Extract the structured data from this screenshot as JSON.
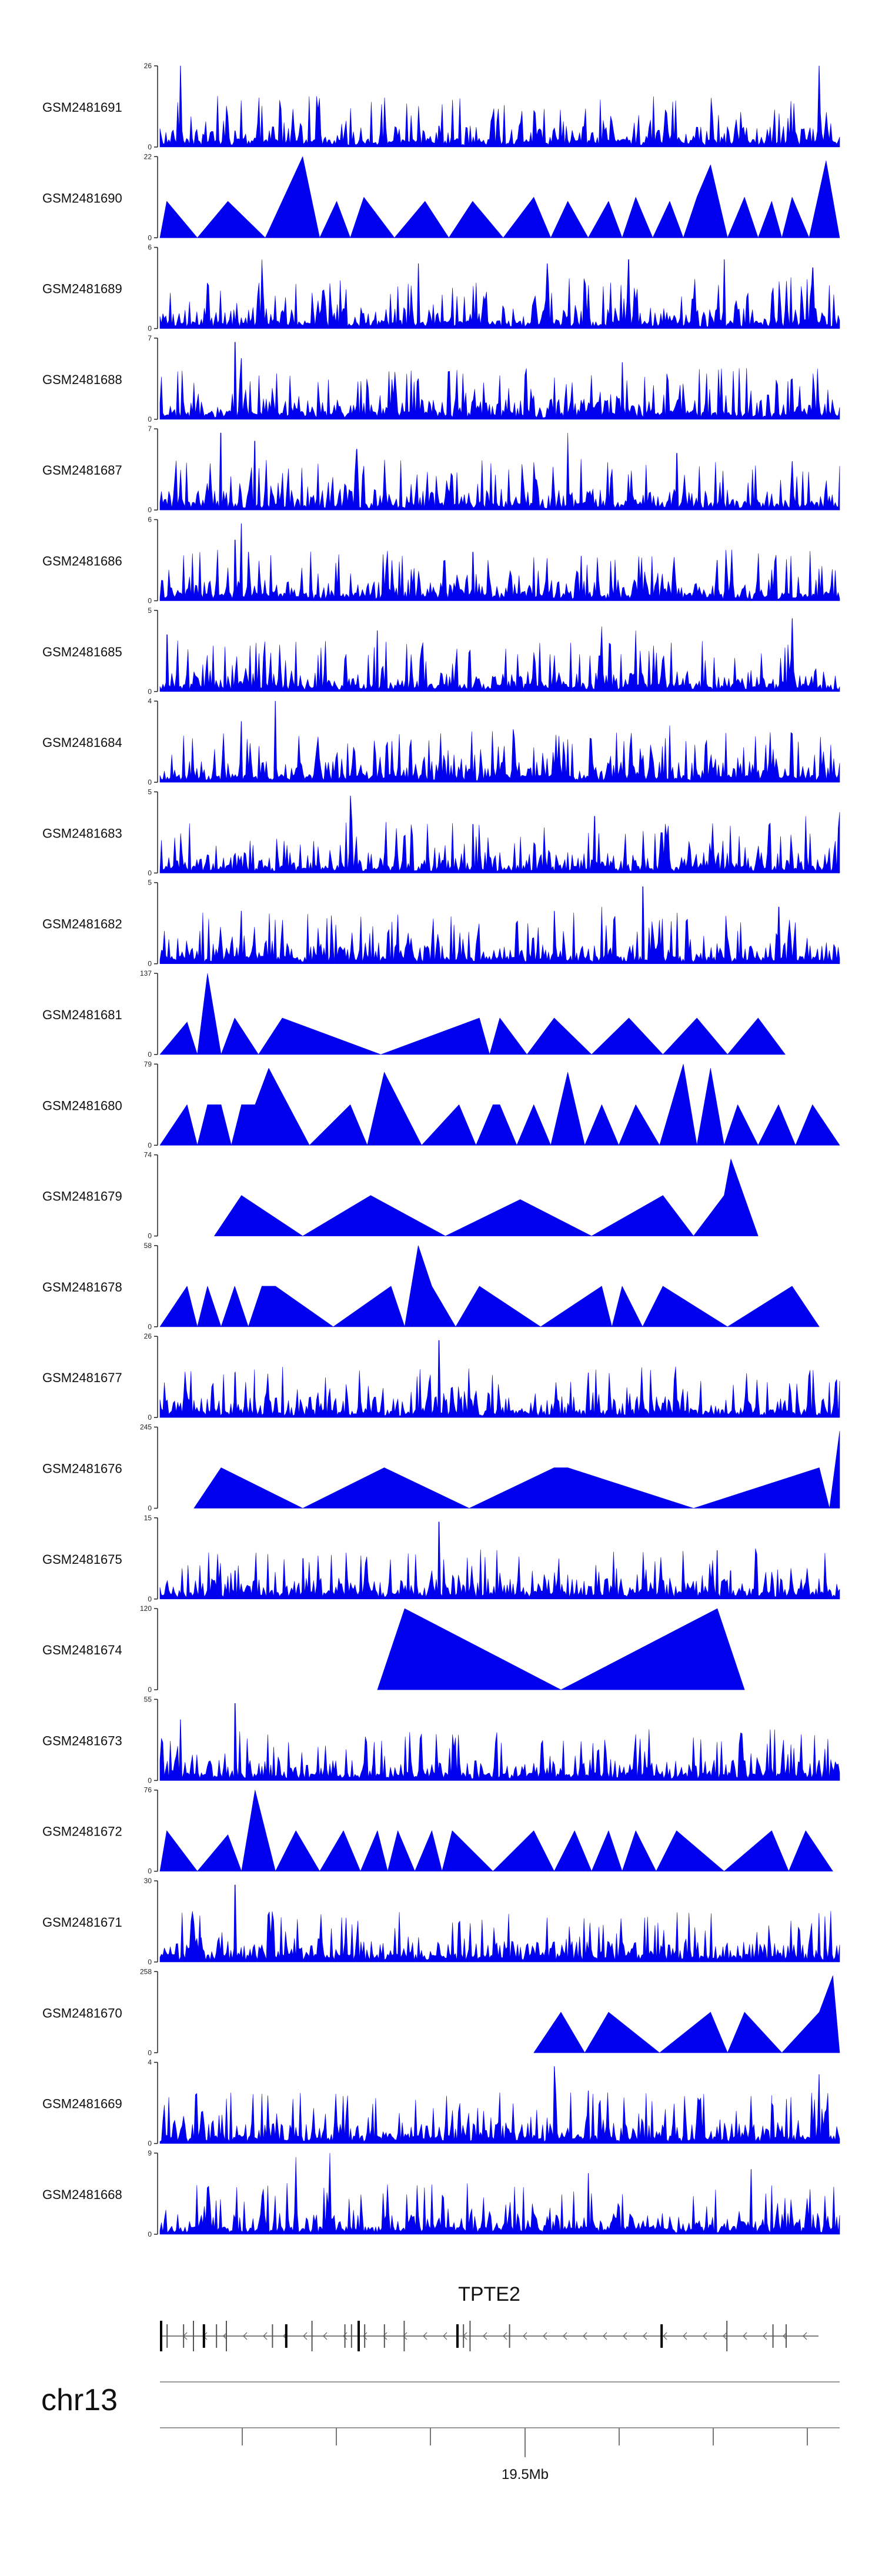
{
  "colors": {
    "signal": "#0000ee",
    "axis": "#222222",
    "gene": "#555555"
  },
  "chart_data": {
    "type": "area",
    "title": "",
    "chromosome": "chr13",
    "gene": "TPTE2",
    "coordinate_label": "19.5Mb",
    "ymin": 0,
    "tracks": [
      {
        "name": "GSM2481691",
        "ymax": "26",
        "mode": "dense",
        "peaks": [
          [
            0.03,
            1.0
          ],
          [
            0.1,
            0.38
          ],
          [
            0.11,
            0.2
          ],
          [
            0.41,
            0.26
          ],
          [
            0.97,
            1.0
          ],
          [
            0.5,
            0.14
          ]
        ]
      },
      {
        "name": "GSM2481690",
        "ymax": "22",
        "mode": "tri",
        "peaks": [
          [
            0.01,
            0.45
          ],
          [
            0.1,
            0.45
          ],
          [
            0.21,
            1.0
          ],
          [
            0.26,
            0.45
          ],
          [
            0.3,
            0.5
          ],
          [
            0.39,
            0.45
          ],
          [
            0.46,
            0.45
          ],
          [
            0.55,
            0.5
          ],
          [
            0.6,
            0.45
          ],
          [
            0.66,
            0.45
          ],
          [
            0.7,
            0.5
          ],
          [
            0.75,
            0.45
          ],
          [
            0.79,
            0.5
          ],
          [
            0.81,
            0.9
          ],
          [
            0.86,
            0.5
          ],
          [
            0.9,
            0.45
          ],
          [
            0.93,
            0.5
          ],
          [
            0.98,
            0.95
          ]
        ]
      },
      {
        "name": "GSM2481689",
        "ymax": "6",
        "mode": "dense",
        "peaks": [
          [
            0.15,
            0.85
          ],
          [
            0.38,
            0.8
          ],
          [
            0.57,
            0.8
          ],
          [
            0.69,
            0.85
          ],
          [
            0.83,
            0.85
          ],
          [
            0.96,
            0.75
          ]
        ]
      },
      {
        "name": "GSM2481688",
        "ymax": "7",
        "mode": "dense",
        "peaks": [
          [
            0.11,
            0.95
          ],
          [
            0.12,
            0.75
          ],
          [
            0.38,
            0.5
          ],
          [
            0.68,
            0.7
          ],
          [
            0.93,
            0.5
          ]
        ]
      },
      {
        "name": "GSM2481687",
        "ymax": "7",
        "mode": "dense",
        "peaks": [
          [
            0.09,
            0.95
          ],
          [
            0.14,
            0.85
          ],
          [
            0.29,
            0.75
          ],
          [
            0.6,
            0.95
          ],
          [
            0.76,
            0.7
          ],
          [
            0.93,
            0.6
          ]
        ]
      },
      {
        "name": "GSM2481686",
        "ymax": "6",
        "mode": "dense",
        "peaks": [
          [
            0.11,
            0.75
          ],
          [
            0.12,
            0.95
          ],
          [
            0.13,
            0.6
          ],
          [
            0.46,
            0.6
          ],
          [
            0.62,
            0.55
          ],
          [
            0.82,
            0.5
          ]
        ]
      },
      {
        "name": "GSM2481685",
        "ymax": "5",
        "mode": "dense",
        "peaks": [
          [
            0.01,
            0.7
          ],
          [
            0.32,
            0.75
          ],
          [
            0.65,
            0.8
          ],
          [
            0.7,
            0.75
          ],
          [
            0.93,
            0.9
          ]
        ]
      },
      {
        "name": "GSM2481684",
        "ymax": "4",
        "mode": "dense",
        "peaks": [
          [
            0.12,
            0.75
          ],
          [
            0.17,
            1.0
          ],
          [
            0.52,
            0.65
          ],
          [
            0.75,
            0.7
          ],
          [
            0.93,
            0.6
          ]
        ]
      },
      {
        "name": "GSM2481683",
        "ymax": "5",
        "mode": "dense",
        "peaks": [
          [
            0.28,
            0.95
          ],
          [
            0.46,
            0.6
          ],
          [
            0.64,
            0.7
          ],
          [
            0.95,
            0.7
          ],
          [
            1.0,
            0.75
          ]
        ]
      },
      {
        "name": "GSM2481682",
        "ymax": "5",
        "mode": "dense",
        "peaks": [
          [
            0.12,
            0.65
          ],
          [
            0.58,
            0.65
          ],
          [
            0.65,
            0.7
          ],
          [
            0.71,
            0.95
          ],
          [
            0.91,
            0.7
          ]
        ]
      },
      {
        "name": "GSM2481681",
        "ymax": "137",
        "mode": "tri",
        "peaks": [
          [
            0.04,
            0.4
          ],
          [
            0.07,
            1.0
          ],
          [
            0.11,
            0.45
          ],
          [
            0.18,
            0.45
          ],
          [
            0.47,
            0.45
          ],
          [
            0.5,
            0.45
          ],
          [
            0.58,
            0.45
          ],
          [
            0.69,
            0.45
          ],
          [
            0.79,
            0.45
          ],
          [
            0.88,
            0.45
          ]
        ]
      },
      {
        "name": "GSM2481680",
        "ymax": "79",
        "mode": "tri",
        "peaks": [
          [
            0.04,
            0.5
          ],
          [
            0.07,
            0.5
          ],
          [
            0.09,
            0.5
          ],
          [
            0.12,
            0.5
          ],
          [
            0.14,
            0.5
          ],
          [
            0.16,
            0.95
          ],
          [
            0.28,
            0.5
          ],
          [
            0.33,
            0.9
          ],
          [
            0.44,
            0.5
          ],
          [
            0.49,
            0.5
          ],
          [
            0.5,
            0.5
          ],
          [
            0.55,
            0.5
          ],
          [
            0.6,
            0.9
          ],
          [
            0.65,
            0.5
          ],
          [
            0.7,
            0.5
          ],
          [
            0.77,
            1.0
          ],
          [
            0.81,
            0.95
          ],
          [
            0.85,
            0.5
          ],
          [
            0.91,
            0.5
          ],
          [
            0.96,
            0.5
          ]
        ]
      },
      {
        "name": "GSM2481679",
        "ymax": "74",
        "mode": "tri",
        "peaks": [
          [
            0.12,
            0.5
          ],
          [
            0.3,
            0.45
          ],
          [
            0.31,
            0.5
          ],
          [
            0.53,
            0.45
          ],
          [
            0.74,
            0.5
          ],
          [
            0.83,
            0.5
          ],
          [
            0.84,
            0.95
          ]
        ]
      },
      {
        "name": "GSM2481678",
        "ymax": "58",
        "mode": "tri",
        "peaks": [
          [
            0.04,
            0.5
          ],
          [
            0.07,
            0.5
          ],
          [
            0.11,
            0.5
          ],
          [
            0.15,
            0.5
          ],
          [
            0.17,
            0.5
          ],
          [
            0.34,
            0.5
          ],
          [
            0.38,
            1.0
          ],
          [
            0.4,
            0.5
          ],
          [
            0.47,
            0.5
          ],
          [
            0.65,
            0.5
          ],
          [
            0.68,
            0.5
          ],
          [
            0.74,
            0.5
          ],
          [
            0.93,
            0.5
          ]
        ]
      },
      {
        "name": "GSM2481677",
        "ymax": "26",
        "mode": "dense",
        "peaks": [
          [
            0.11,
            0.55
          ],
          [
            0.14,
            0.25
          ],
          [
            0.41,
            0.95
          ],
          [
            0.63,
            0.55
          ],
          [
            0.42,
            0.2
          ]
        ]
      },
      {
        "name": "GSM2481676",
        "ymax": "245",
        "mode": "tri",
        "peaks": [
          [
            0.09,
            0.5
          ],
          [
            0.33,
            0.5
          ],
          [
            0.58,
            0.5
          ],
          [
            0.6,
            0.5
          ],
          [
            0.97,
            0.5
          ],
          [
            1.0,
            0.95
          ]
        ]
      },
      {
        "name": "GSM2481675",
        "ymax": "15",
        "mode": "dense",
        "peaks": [
          [
            0.41,
            0.95
          ],
          [
            0.11,
            0.35
          ],
          [
            0.21,
            0.5
          ],
          [
            0.4,
            0.35
          ],
          [
            0.82,
            0.6
          ],
          [
            0.84,
            0.35
          ]
        ]
      },
      {
        "name": "GSM2481674",
        "ymax": "120",
        "mode": "tri",
        "peaks": [
          [
            0.36,
            1.0
          ],
          [
            0.82,
            1.0
          ]
        ]
      },
      {
        "name": "GSM2481673",
        "ymax": "55",
        "mode": "dense",
        "peaks": [
          [
            0.03,
            0.75
          ],
          [
            0.11,
            0.95
          ],
          [
            0.41,
            0.12
          ],
          [
            0.58,
            0.2
          ],
          [
            0.97,
            0.25
          ]
        ]
      },
      {
        "name": "GSM2481672",
        "ymax": "76",
        "mode": "tri",
        "peaks": [
          [
            0.01,
            0.5
          ],
          [
            0.1,
            0.45
          ],
          [
            0.14,
            1.0
          ],
          [
            0.2,
            0.5
          ],
          [
            0.27,
            0.5
          ],
          [
            0.32,
            0.5
          ],
          [
            0.35,
            0.5
          ],
          [
            0.4,
            0.5
          ],
          [
            0.43,
            0.5
          ],
          [
            0.55,
            0.5
          ],
          [
            0.61,
            0.5
          ],
          [
            0.66,
            0.5
          ],
          [
            0.7,
            0.5
          ],
          [
            0.76,
            0.5
          ],
          [
            0.9,
            0.5
          ],
          [
            0.95,
            0.5
          ]
        ]
      },
      {
        "name": "GSM2481671",
        "ymax": "30",
        "mode": "dense",
        "peaks": [
          [
            0.11,
            0.95
          ],
          [
            0.06,
            0.3
          ],
          [
            0.3,
            0.25
          ],
          [
            0.58,
            0.25
          ],
          [
            0.85,
            0.2
          ]
        ]
      },
      {
        "name": "GSM2481670",
        "ymax": "258",
        "mode": "tri",
        "peaks": [
          [
            0.59,
            0.5
          ],
          [
            0.66,
            0.5
          ],
          [
            0.81,
            0.5
          ],
          [
            0.86,
            0.5
          ],
          [
            0.97,
            0.5
          ],
          [
            0.99,
            0.95
          ]
        ]
      },
      {
        "name": "GSM2481669",
        "ymax": "4",
        "mode": "dense",
        "peaks": [
          [
            0.58,
            0.95
          ],
          [
            0.63,
            0.65
          ],
          [
            0.9,
            0.5
          ],
          [
            0.97,
            0.85
          ]
        ]
      },
      {
        "name": "GSM2481668",
        "ymax": "9",
        "mode": "dense",
        "peaks": [
          [
            0.2,
            0.95
          ],
          [
            0.25,
            1.0
          ],
          [
            0.63,
            0.75
          ],
          [
            0.87,
            0.8
          ],
          [
            0.9,
            0.6
          ]
        ]
      }
    ]
  }
}
